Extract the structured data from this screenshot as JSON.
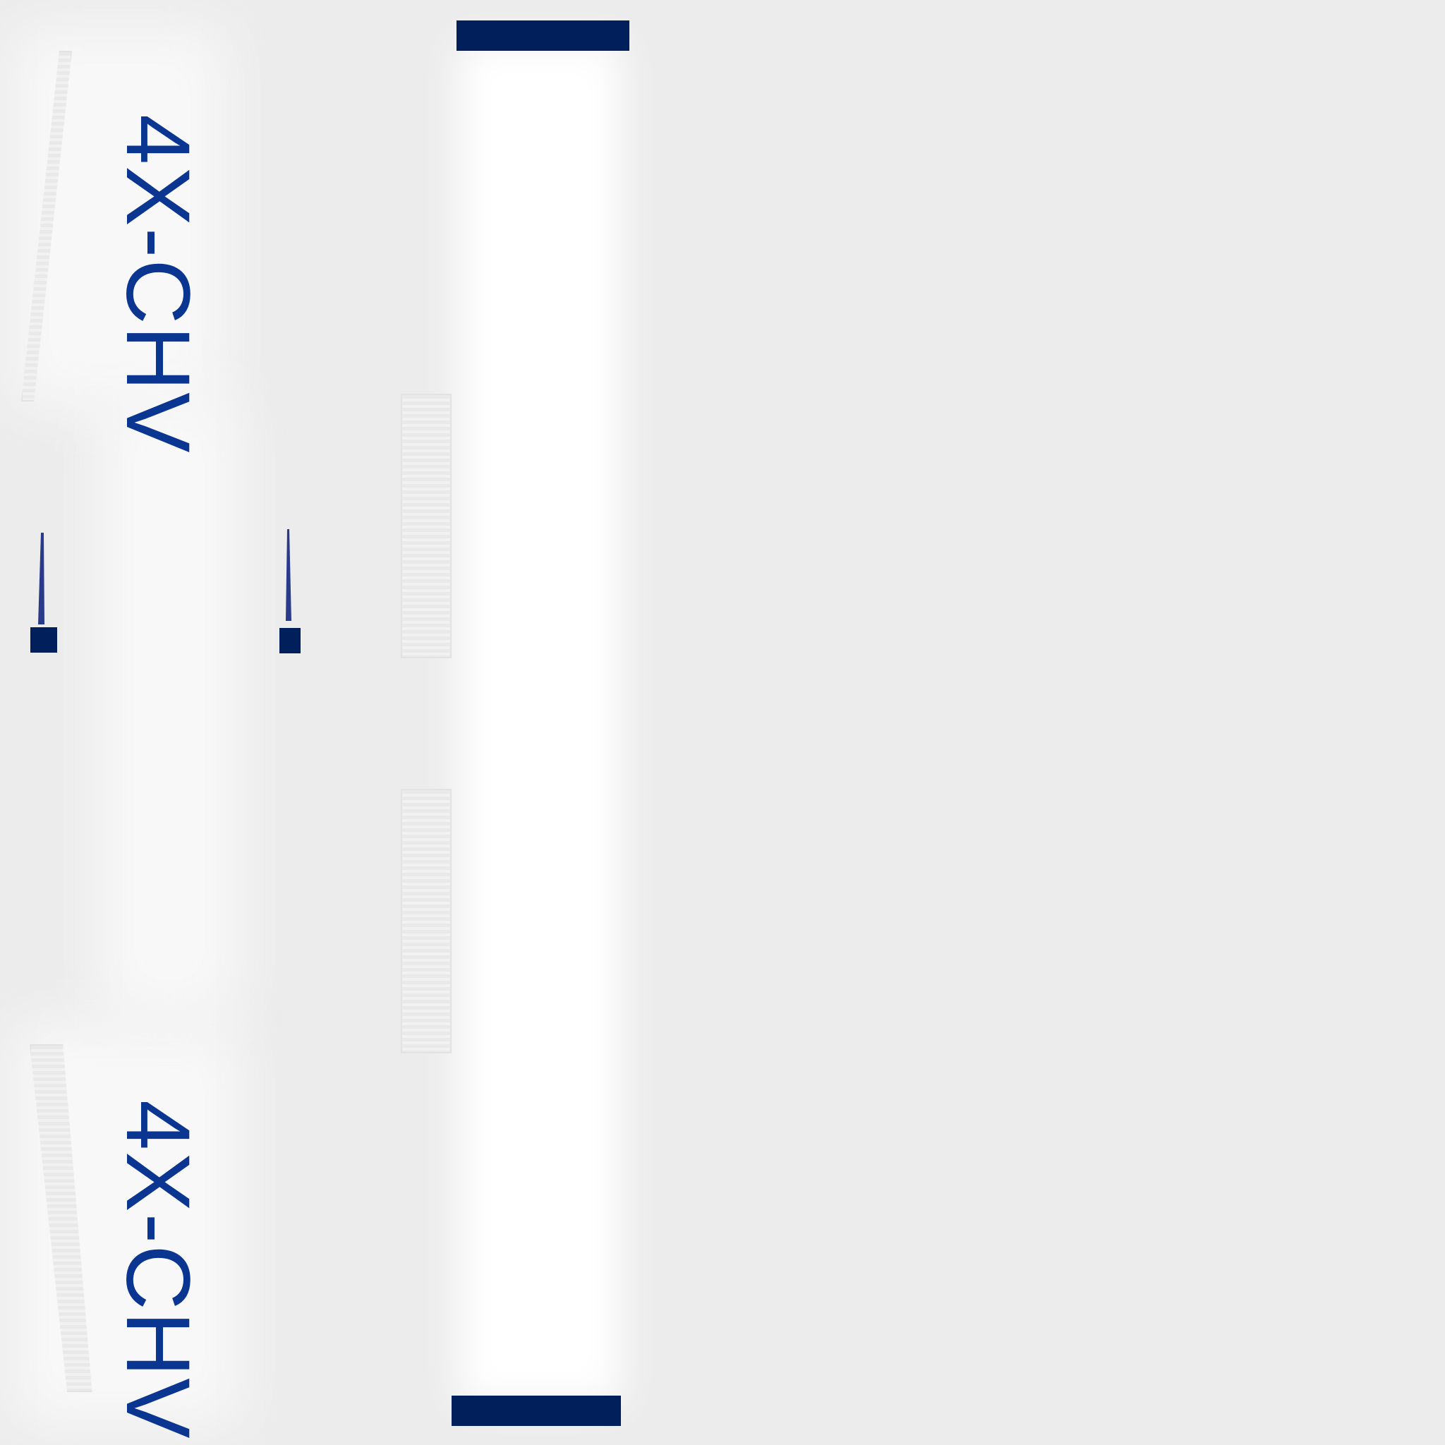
{
  "labels": {
    "top": "4X-CHV",
    "bottom": "4X-CHV"
  },
  "colors": {
    "background": "#ececec",
    "fuselage": "#ffffff",
    "navy": "#001f5b",
    "registration_text": "#0a3590",
    "ribbed_panel": "#e9e9e9"
  },
  "icons": {
    "left_antenna": "antenna-icon",
    "right_antenna": "antenna-icon"
  }
}
